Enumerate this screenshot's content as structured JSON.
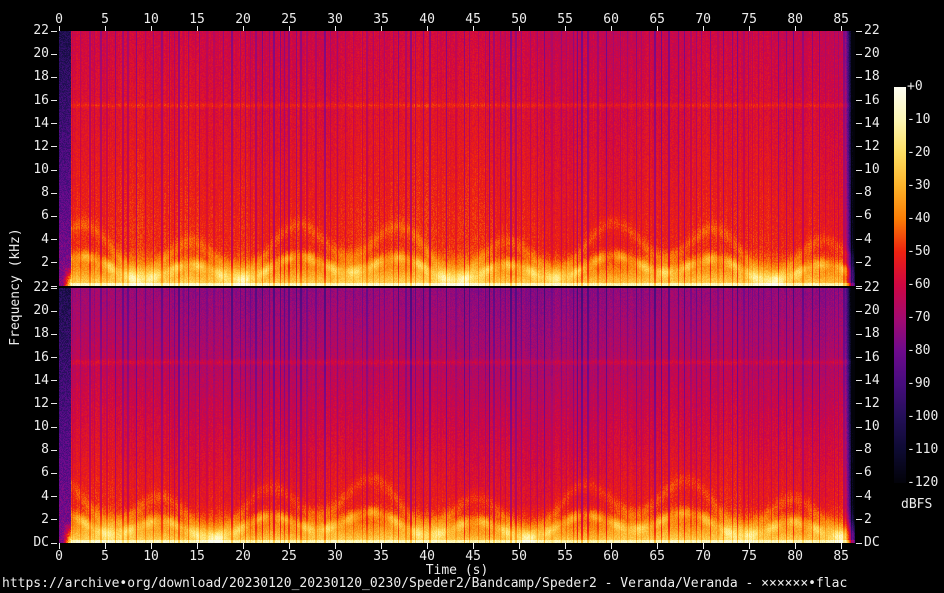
{
  "footer": {
    "source_text": "https://archive•org/download/20230120_20230120_0230/Speder2/Bandcamp/Speder2 - Veranda/Veranda - ××××××•flac"
  },
  "colors": {
    "background": "#000000",
    "axis_text": "#ededed",
    "tick": "#e8e8e8"
  },
  "chart_data": {
    "type": "heatmap",
    "subtype": "audio-spectrogram",
    "channels": 2,
    "x": {
      "label": "Time (s)",
      "unit": "s",
      "range": [
        0,
        86.5
      ],
      "ticks": [
        0,
        5,
        10,
        15,
        20,
        25,
        30,
        35,
        40,
        45,
        50,
        55,
        60,
        65,
        70,
        75,
        80,
        85
      ]
    },
    "y": {
      "label": "Frequency (kHz)",
      "unit": "kHz",
      "range": [
        0,
        22
      ],
      "ticks": [
        {
          "value": 22,
          "label": "22"
        },
        {
          "value": 20,
          "label": "20"
        },
        {
          "value": 18,
          "label": "18"
        },
        {
          "value": 16,
          "label": "16"
        },
        {
          "value": 14,
          "label": "14"
        },
        {
          "value": 12,
          "label": "12"
        },
        {
          "value": 10,
          "label": "10"
        },
        {
          "value": 8,
          "label": "8"
        },
        {
          "value": 6,
          "label": "6"
        },
        {
          "value": 4,
          "label": "4"
        },
        {
          "value": 2,
          "label": "2"
        },
        {
          "value": 0,
          "label": "DC"
        }
      ]
    },
    "colorbar": {
      "label": "dBFS",
      "range_db": [
        0,
        -120
      ],
      "ticks": [
        "+0",
        "-10",
        "-20",
        "-30",
        "-40",
        "-50",
        "-60",
        "-70",
        "-80",
        "-90",
        "-100",
        "-110",
        "-120"
      ],
      "palette": [
        {
          "db": 0,
          "color": "#fcfcf0"
        },
        {
          "db": -10,
          "color": "#fdf6b4"
        },
        {
          "db": -20,
          "color": "#fede62"
        },
        {
          "db": -30,
          "color": "#fdb32a"
        },
        {
          "db": -40,
          "color": "#fb7d06"
        },
        {
          "db": -50,
          "color": "#ee2211"
        },
        {
          "db": -60,
          "color": "#cf0743"
        },
        {
          "db": -70,
          "color": "#a40a70"
        },
        {
          "db": -80,
          "color": "#6f0a8d"
        },
        {
          "db": -90,
          "color": "#470d7e"
        },
        {
          "db": -100,
          "color": "#241059"
        },
        {
          "db": -110,
          "color": "#0e0b33"
        },
        {
          "db": -120,
          "color": "#03030a"
        }
      ]
    },
    "content": {
      "intro_silence_s": 1.3,
      "audio_fade_start_s": 85.3,
      "audio_end_s": 86.3,
      "description": "Stereo music spectrogram: red body with purple beat stripes, yellow energy band below ~3 kHz, bright yellow line at DC; channel 2 upper band more purple than channel 1."
    }
  }
}
